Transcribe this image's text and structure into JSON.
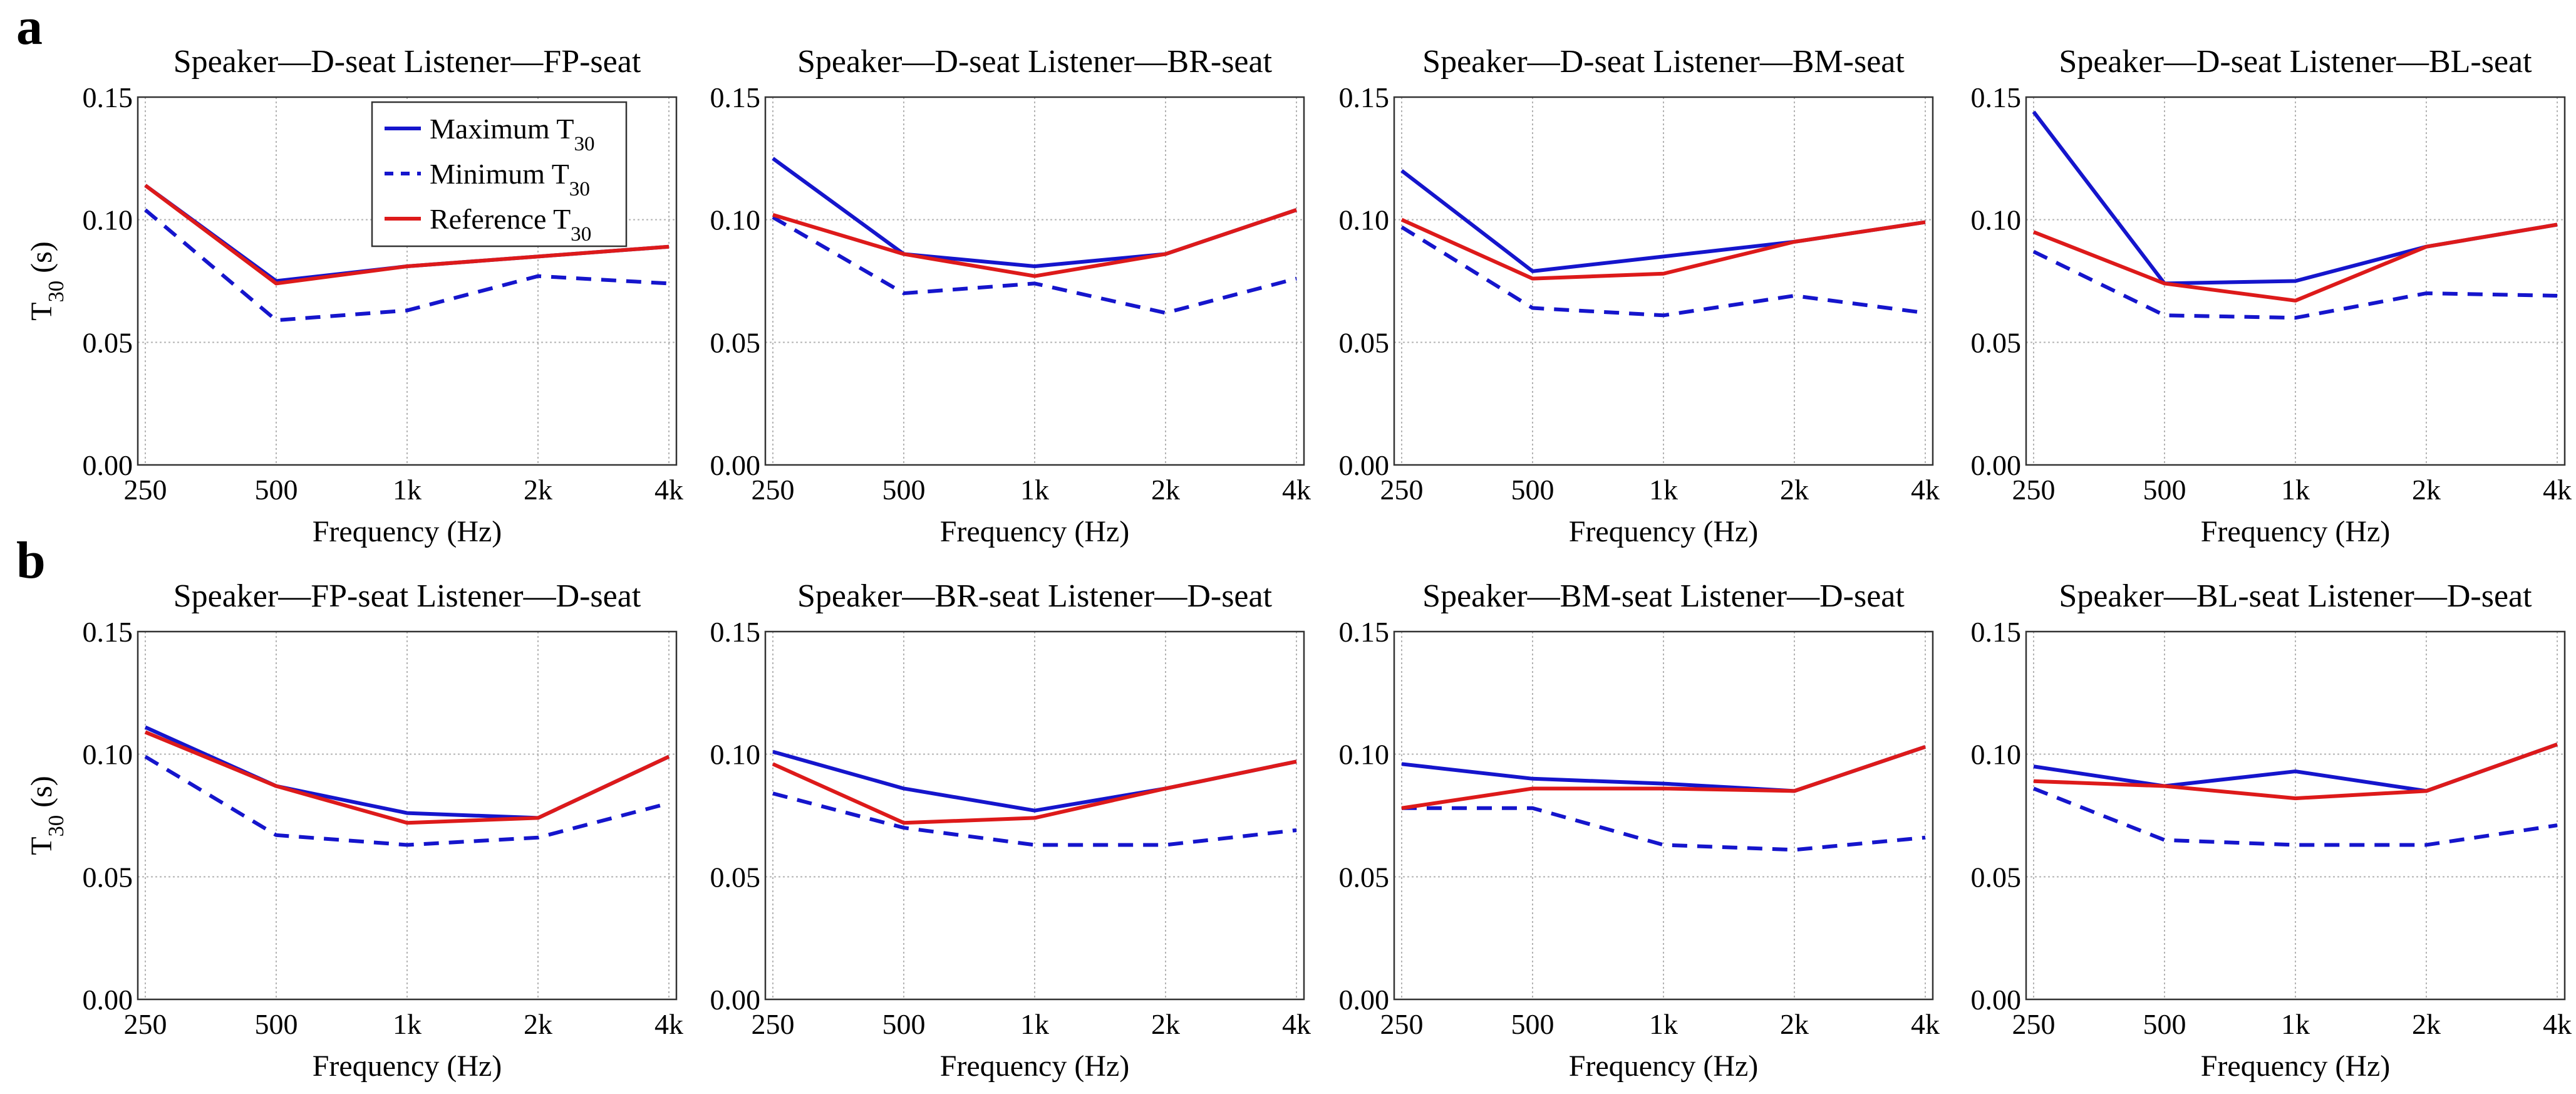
{
  "figure": {
    "panel_labels": [
      "a",
      "b"
    ],
    "x_axis_label": "Frequency (Hz)",
    "y_axis_label_main": "T",
    "y_axis_label_sub": "30",
    "y_axis_label_unit": " (s)",
    "legend": {
      "placement": "top-right inside first chart",
      "entries": [
        {
          "text": "Maximum T",
          "sub": "30",
          "color": "#1515cc",
          "dash": false
        },
        {
          "text": "Minimum T",
          "sub": "30",
          "color": "#1515cc",
          "dash": true
        },
        {
          "text": "Reference T",
          "sub": "30",
          "color": "#dd1a1a",
          "dash": false
        }
      ]
    },
    "colors": {
      "maximum": "#1515cc",
      "minimum": "#1515cc",
      "reference": "#dd1a1a",
      "grid": "#b4b4b4",
      "axis": "#333333"
    }
  },
  "chart_data": [
    {
      "type": "line",
      "row": 0,
      "col": 0,
      "title": "Speaker—D-seat   Listener—FP-seat",
      "xlabel": "Frequency (Hz)",
      "ylabel": "T30 (s)",
      "categories": [
        "250",
        "500",
        "1k",
        "2k",
        "4k"
      ],
      "yticks": [
        "0.00",
        "0.05",
        "0.10",
        "0.15"
      ],
      "ylim": [
        0,
        0.15
      ],
      "grid": true,
      "series": [
        {
          "name": "Maximum T30",
          "style": "solid",
          "color": "#1515cc",
          "values": [
            0.114,
            0.075,
            0.081,
            0.085,
            0.089
          ]
        },
        {
          "name": "Minimum T30",
          "style": "dashed",
          "color": "#1515cc",
          "values": [
            0.104,
            0.059,
            0.063,
            0.077,
            0.074
          ]
        },
        {
          "name": "Reference T30",
          "style": "solid",
          "color": "#dd1a1a",
          "values": [
            0.114,
            0.074,
            0.081,
            0.085,
            0.089
          ]
        }
      ]
    },
    {
      "type": "line",
      "row": 0,
      "col": 1,
      "title": "Speaker—D-seat   Listener—BR-seat",
      "xlabel": "Frequency (Hz)",
      "ylabel": "T30 (s)",
      "categories": [
        "250",
        "500",
        "1k",
        "2k",
        "4k"
      ],
      "yticks": [
        "0.00",
        "0.05",
        "0.10",
        "0.15"
      ],
      "ylim": [
        0,
        0.15
      ],
      "grid": true,
      "series": [
        {
          "name": "Maximum T30",
          "style": "solid",
          "color": "#1515cc",
          "values": [
            0.125,
            0.086,
            0.081,
            0.086,
            0.104
          ]
        },
        {
          "name": "Minimum T30",
          "style": "dashed",
          "color": "#1515cc",
          "values": [
            0.101,
            0.07,
            0.074,
            0.062,
            0.076
          ]
        },
        {
          "name": "Reference T30",
          "style": "solid",
          "color": "#dd1a1a",
          "values": [
            0.102,
            0.086,
            0.077,
            0.086,
            0.104
          ]
        }
      ]
    },
    {
      "type": "line",
      "row": 0,
      "col": 2,
      "title": "Speaker—D-seat   Listener—BM-seat",
      "xlabel": "Frequency (Hz)",
      "ylabel": "T30 (s)",
      "categories": [
        "250",
        "500",
        "1k",
        "2k",
        "4k"
      ],
      "yticks": [
        "0.00",
        "0.05",
        "0.10",
        "0.15"
      ],
      "ylim": [
        0,
        0.15
      ],
      "grid": true,
      "series": [
        {
          "name": "Maximum T30",
          "style": "solid",
          "color": "#1515cc",
          "values": [
            0.12,
            0.079,
            0.085,
            0.091,
            0.099
          ]
        },
        {
          "name": "Minimum T30",
          "style": "dashed",
          "color": "#1515cc",
          "values": [
            0.097,
            0.064,
            0.061,
            0.069,
            0.062
          ]
        },
        {
          "name": "Reference T30",
          "style": "solid",
          "color": "#dd1a1a",
          "values": [
            0.1,
            0.076,
            0.078,
            0.091,
            0.099
          ]
        }
      ]
    },
    {
      "type": "line",
      "row": 0,
      "col": 3,
      "title": "Speaker—D-seat   Listener—BL-seat",
      "xlabel": "Frequency (Hz)",
      "ylabel": "T30 (s)",
      "categories": [
        "250",
        "500",
        "1k",
        "2k",
        "4k"
      ],
      "yticks": [
        "0.00",
        "0.05",
        "0.10",
        "0.15"
      ],
      "ylim": [
        0,
        0.15
      ],
      "grid": true,
      "series": [
        {
          "name": "Maximum T30",
          "style": "solid",
          "color": "#1515cc",
          "values": [
            0.144,
            0.074,
            0.075,
            0.089,
            0.098
          ]
        },
        {
          "name": "Minimum T30",
          "style": "dashed",
          "color": "#1515cc",
          "values": [
            0.087,
            0.061,
            0.06,
            0.07,
            0.069
          ]
        },
        {
          "name": "Reference T30",
          "style": "solid",
          "color": "#dd1a1a",
          "values": [
            0.095,
            0.074,
            0.067,
            0.089,
            0.098
          ]
        }
      ]
    },
    {
      "type": "line",
      "row": 1,
      "col": 0,
      "title": "Speaker—FP-seat   Listener—D-seat",
      "xlabel": "Frequency (Hz)",
      "ylabel": "T30 (s)",
      "categories": [
        "250",
        "500",
        "1k",
        "2k",
        "4k"
      ],
      "yticks": [
        "0.00",
        "0.05",
        "0.10",
        "0.15"
      ],
      "ylim": [
        0,
        0.15
      ],
      "grid": true,
      "series": [
        {
          "name": "Maximum T30",
          "style": "solid",
          "color": "#1515cc",
          "values": [
            0.111,
            0.087,
            0.076,
            0.074,
            0.099
          ]
        },
        {
          "name": "Minimum T30",
          "style": "dashed",
          "color": "#1515cc",
          "values": [
            0.099,
            0.067,
            0.063,
            0.066,
            0.08
          ]
        },
        {
          "name": "Reference T30",
          "style": "solid",
          "color": "#dd1a1a",
          "values": [
            0.109,
            0.087,
            0.072,
            0.074,
            0.099
          ]
        }
      ]
    },
    {
      "type": "line",
      "row": 1,
      "col": 1,
      "title": "Speaker—BR-seat   Listener—D-seat",
      "xlabel": "Frequency (Hz)",
      "ylabel": "T30 (s)",
      "categories": [
        "250",
        "500",
        "1k",
        "2k",
        "4k"
      ],
      "yticks": [
        "0.00",
        "0.05",
        "0.10",
        "0.15"
      ],
      "ylim": [
        0,
        0.15
      ],
      "grid": true,
      "series": [
        {
          "name": "Maximum T30",
          "style": "solid",
          "color": "#1515cc",
          "values": [
            0.101,
            0.086,
            0.077,
            0.086,
            0.097
          ]
        },
        {
          "name": "Minimum T30",
          "style": "dashed",
          "color": "#1515cc",
          "values": [
            0.084,
            0.07,
            0.063,
            0.063,
            0.069
          ]
        },
        {
          "name": "Reference T30",
          "style": "solid",
          "color": "#dd1a1a",
          "values": [
            0.096,
            0.072,
            0.074,
            0.086,
            0.097
          ]
        }
      ]
    },
    {
      "type": "line",
      "row": 1,
      "col": 2,
      "title": "Speaker—BM-seat   Listener—D-seat",
      "xlabel": "Frequency (Hz)",
      "ylabel": "T30 (s)",
      "categories": [
        "250",
        "500",
        "1k",
        "2k",
        "4k"
      ],
      "yticks": [
        "0.00",
        "0.05",
        "0.10",
        "0.15"
      ],
      "ylim": [
        0,
        0.15
      ],
      "grid": true,
      "series": [
        {
          "name": "Maximum T30",
          "style": "solid",
          "color": "#1515cc",
          "values": [
            0.096,
            0.09,
            0.088,
            0.085,
            0.103
          ]
        },
        {
          "name": "Minimum T30",
          "style": "dashed",
          "color": "#1515cc",
          "values": [
            0.078,
            0.078,
            0.063,
            0.061,
            0.066
          ]
        },
        {
          "name": "Reference T30",
          "style": "solid",
          "color": "#dd1a1a",
          "values": [
            0.078,
            0.086,
            0.086,
            0.085,
            0.103
          ]
        }
      ]
    },
    {
      "type": "line",
      "row": 1,
      "col": 3,
      "title": "Speaker—BL-seat   Listener—D-seat",
      "xlabel": "Frequency (Hz)",
      "ylabel": "T30 (s)",
      "categories": [
        "250",
        "500",
        "1k",
        "2k",
        "4k"
      ],
      "yticks": [
        "0.00",
        "0.05",
        "0.10",
        "0.15"
      ],
      "ylim": [
        0,
        0.15
      ],
      "grid": true,
      "series": [
        {
          "name": "Maximum T30",
          "style": "solid",
          "color": "#1515cc",
          "values": [
            0.095,
            0.087,
            0.093,
            0.085,
            0.104
          ]
        },
        {
          "name": "Minimum T30",
          "style": "dashed",
          "color": "#1515cc",
          "values": [
            0.086,
            0.065,
            0.063,
            0.063,
            0.071
          ]
        },
        {
          "name": "Reference T30",
          "style": "solid",
          "color": "#dd1a1a",
          "values": [
            0.089,
            0.087,
            0.082,
            0.085,
            0.104
          ]
        }
      ]
    }
  ]
}
